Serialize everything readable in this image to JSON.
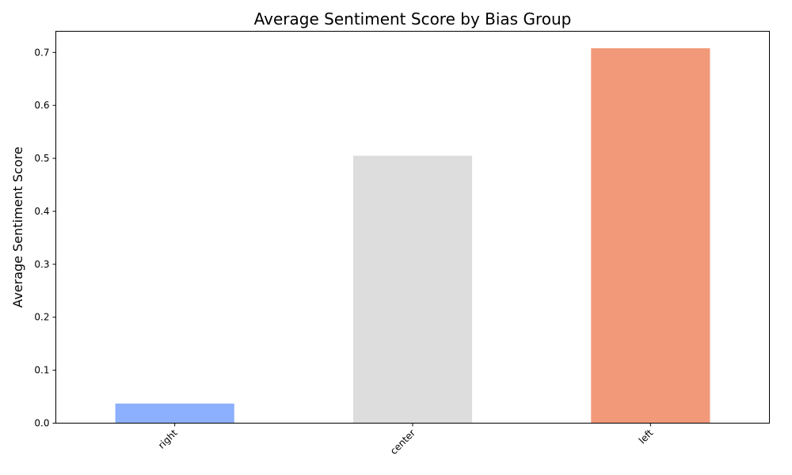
{
  "chart_data": {
    "type": "bar",
    "title": "Average Sentiment Score by Bias Group",
    "xlabel": "",
    "ylabel": "Average Sentiment Score",
    "categories": [
      "right",
      "center",
      "left"
    ],
    "values": [
      0.037,
      0.505,
      0.708
    ],
    "bar_colors": [
      "#8caffe",
      "#dddddd",
      "#f2997a"
    ],
    "ylim": [
      0,
      0.74
    ],
    "yticks": [
      0.0,
      0.1,
      0.2,
      0.3,
      0.4,
      0.5,
      0.6,
      0.7
    ],
    "ytick_labels": [
      "0.0",
      "0.1",
      "0.2",
      "0.3",
      "0.4",
      "0.5",
      "0.6",
      "0.7"
    ],
    "grid": false,
    "legend": "none"
  }
}
